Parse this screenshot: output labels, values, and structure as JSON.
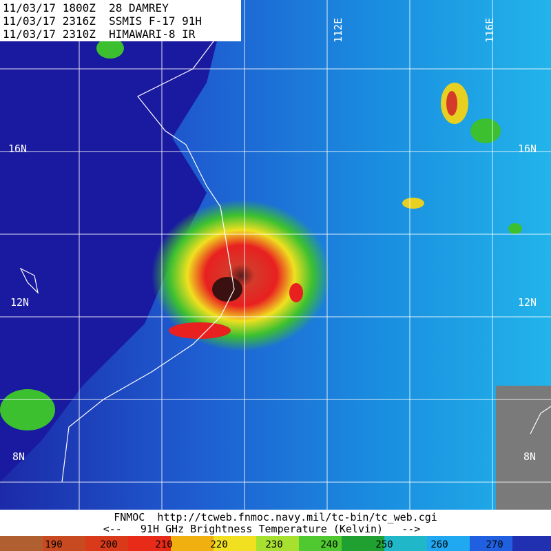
{
  "header": {
    "lines": [
      "11/03/17 1800Z  28 DAMREY",
      "11/03/17 2316Z  SSMIS F-17 91H",
      "11/03/17 2310Z  HIMAWARI-8 IR"
    ]
  },
  "grid": {
    "latitudes": [
      "16N",
      "12N",
      "8N"
    ],
    "longitudes": [
      "112E",
      "116E"
    ]
  },
  "footer": {
    "source": "FNMOC  http://tcweb.fnmoc.navy.mil/tc-bin/tc_web.cgi",
    "caption": "<--   91H GHz Brightness Temperature (Kelvin)   -->"
  },
  "colorbar": {
    "labels": [
      190,
      200,
      210,
      220,
      230,
      240,
      250,
      260,
      270
    ]
  }
}
